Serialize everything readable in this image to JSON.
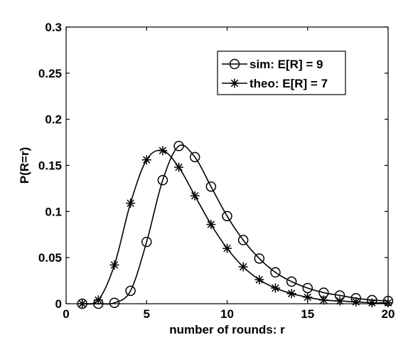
{
  "chart_data": {
    "type": "line",
    "title": "",
    "xlabel": "number of rounds: r",
    "ylabel": "P(R=r)",
    "xlim": [
      0,
      20
    ],
    "ylim": [
      0,
      0.3
    ],
    "xticks": [
      0,
      5,
      10,
      15,
      20
    ],
    "xtick_labels": [
      "0",
      "5",
      "10",
      "15",
      "20"
    ],
    "yticks": [
      0,
      0.05,
      0.1,
      0.15,
      0.2,
      0.25,
      0.3
    ],
    "ytick_labels": [
      "0",
      "0.05",
      "0.1",
      "0.15",
      "0.2",
      "0.25",
      "0.3"
    ],
    "grid": false,
    "legend_position": "top-right",
    "series": [
      {
        "name": "sim: E[R] = 9",
        "marker": "circle",
        "x": [
          1,
          2,
          3,
          4,
          5,
          6,
          7,
          8,
          9,
          10,
          11,
          12,
          13,
          14,
          15,
          16,
          17,
          18,
          19,
          20
        ],
        "values": [
          0,
          0,
          0.001,
          0.014,
          0.067,
          0.134,
          0.171,
          0.159,
          0.127,
          0.095,
          0.069,
          0.049,
          0.034,
          0.024,
          0.017,
          0.012,
          0.009,
          0.006,
          0.004,
          0.003
        ]
      },
      {
        "name": "theo: E[R] = 7",
        "marker": "asterisk",
        "x": [
          1,
          2,
          3,
          4,
          5,
          6,
          7,
          8,
          9,
          10,
          11,
          12,
          13,
          14,
          15,
          16,
          17,
          18,
          19,
          20
        ],
        "values": [
          0,
          0.004,
          0.042,
          0.109,
          0.156,
          0.166,
          0.148,
          0.117,
          0.086,
          0.06,
          0.04,
          0.026,
          0.017,
          0.011,
          0.007,
          0.004,
          0.003,
          0.002,
          0.001,
          0.001
        ]
      }
    ]
  }
}
